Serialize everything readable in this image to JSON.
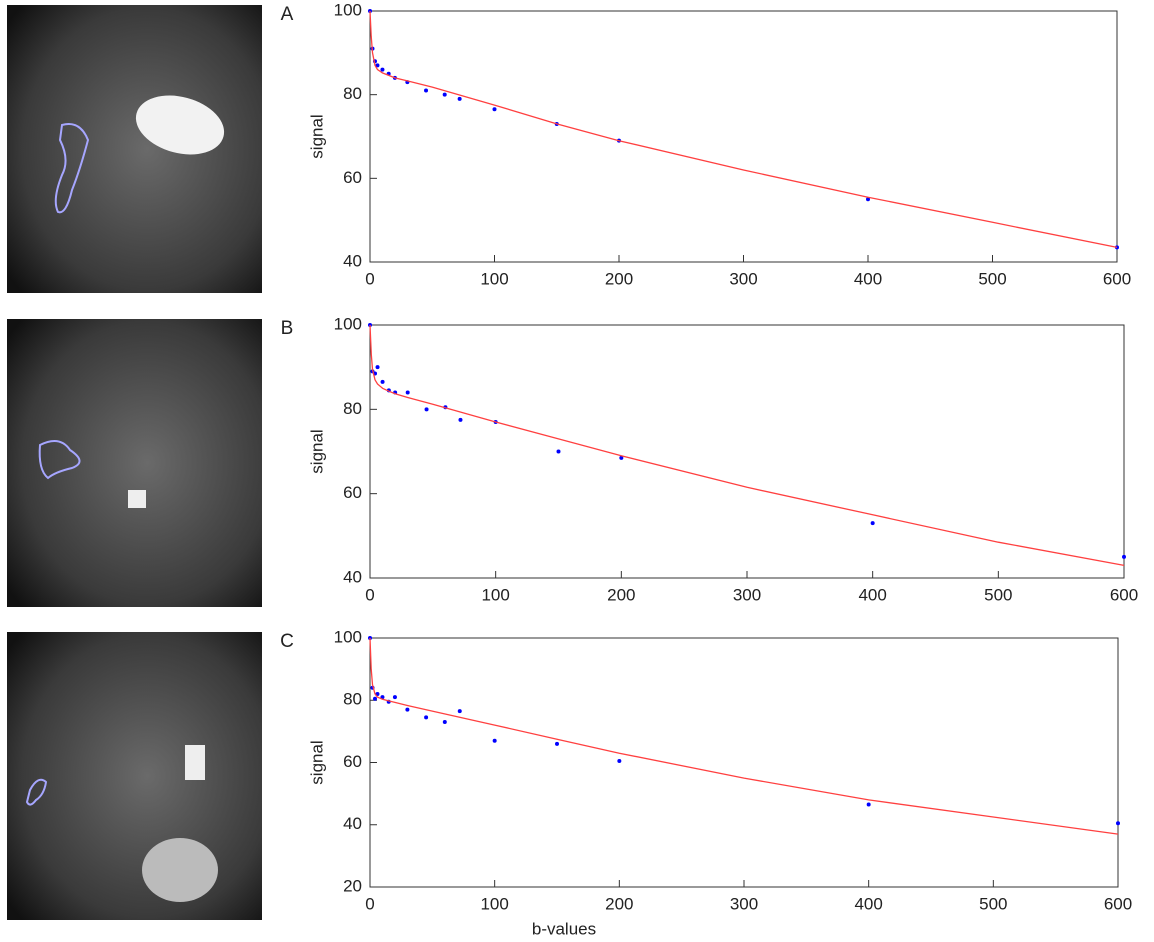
{
  "chart_data": [
    {
      "type": "scatter",
      "panel_label": "A",
      "ylabel": "signal",
      "xlim": [
        0,
        600
      ],
      "ylim": [
        40,
        100
      ],
      "xticks": [
        0,
        100,
        200,
        300,
        400,
        500,
        600
      ],
      "yticks": [
        40,
        60,
        80,
        100
      ],
      "series": [
        {
          "style": "points",
          "color": "#0000ff",
          "x": [
            0,
            2,
            4,
            6,
            10,
            15,
            20,
            30,
            45,
            60,
            72,
            100,
            150,
            200,
            400,
            600
          ],
          "values": [
            100,
            91,
            88,
            87,
            86,
            85,
            84,
            83,
            81,
            80,
            79,
            76.5,
            73,
            69,
            55,
            43.5
          ]
        },
        {
          "style": "line",
          "color": "#ff4040",
          "x": [
            0,
            1,
            2,
            4,
            6,
            10,
            15,
            20,
            30,
            50,
            100,
            150,
            200,
            300,
            400,
            500,
            600
          ],
          "values": [
            100,
            94,
            90,
            87,
            86,
            85.2,
            84.6,
            84,
            83.3,
            81.8,
            77.5,
            73,
            69,
            62,
            55.5,
            49.5,
            43.5
          ]
        }
      ]
    },
    {
      "type": "scatter",
      "panel_label": "B",
      "ylabel": "signal",
      "xlim": [
        0,
        600
      ],
      "ylim": [
        40,
        100
      ],
      "xticks": [
        0,
        100,
        200,
        300,
        400,
        500,
        600
      ],
      "yticks": [
        40,
        60,
        80,
        100
      ],
      "series": [
        {
          "style": "points",
          "color": "#0000ff",
          "x": [
            0,
            2,
            4,
            6,
            10,
            15,
            20,
            30,
            45,
            60,
            72,
            100,
            150,
            200,
            400,
            600
          ],
          "values": [
            100,
            89,
            88.5,
            90,
            86.5,
            84.5,
            84,
            84,
            80,
            80.5,
            77.5,
            77,
            70,
            68.5,
            53,
            45
          ]
        },
        {
          "style": "line",
          "color": "#ff4040",
          "x": [
            0,
            1,
            2,
            4,
            6,
            10,
            15,
            20,
            30,
            50,
            100,
            150,
            200,
            300,
            400,
            500,
            600
          ],
          "values": [
            100,
            93,
            89.5,
            87,
            86,
            85,
            84.3,
            83.7,
            82.8,
            81.2,
            77,
            73,
            69,
            61.5,
            55,
            48.5,
            43
          ]
        }
      ]
    },
    {
      "type": "scatter",
      "panel_label": "C",
      "ylabel": "signal",
      "xlabel": "b-values",
      "xlim": [
        0,
        600
      ],
      "ylim": [
        20,
        100
      ],
      "xticks": [
        0,
        100,
        200,
        300,
        400,
        500,
        600
      ],
      "yticks": [
        20,
        40,
        60,
        80,
        100
      ],
      "series": [
        {
          "style": "points",
          "color": "#0000ff",
          "x": [
            0,
            2,
            4,
            6,
            10,
            15,
            20,
            30,
            45,
            60,
            72,
            100,
            150,
            200,
            400,
            600
          ],
          "values": [
            100,
            84,
            80.5,
            82,
            81,
            79.5,
            81,
            77,
            74.5,
            73,
            76.5,
            67,
            66,
            60.5,
            46.5,
            40.5
          ]
        },
        {
          "style": "line",
          "color": "#ff4040",
          "x": [
            0,
            1,
            2,
            4,
            6,
            10,
            15,
            20,
            30,
            50,
            100,
            150,
            200,
            300,
            400,
            500,
            600
          ],
          "values": [
            100,
            90,
            85,
            82,
            81,
            80.3,
            79.8,
            79.3,
            78.3,
            76.5,
            72,
            67.5,
            63,
            55,
            48,
            42.5,
            37
          ]
        }
      ]
    }
  ]
}
